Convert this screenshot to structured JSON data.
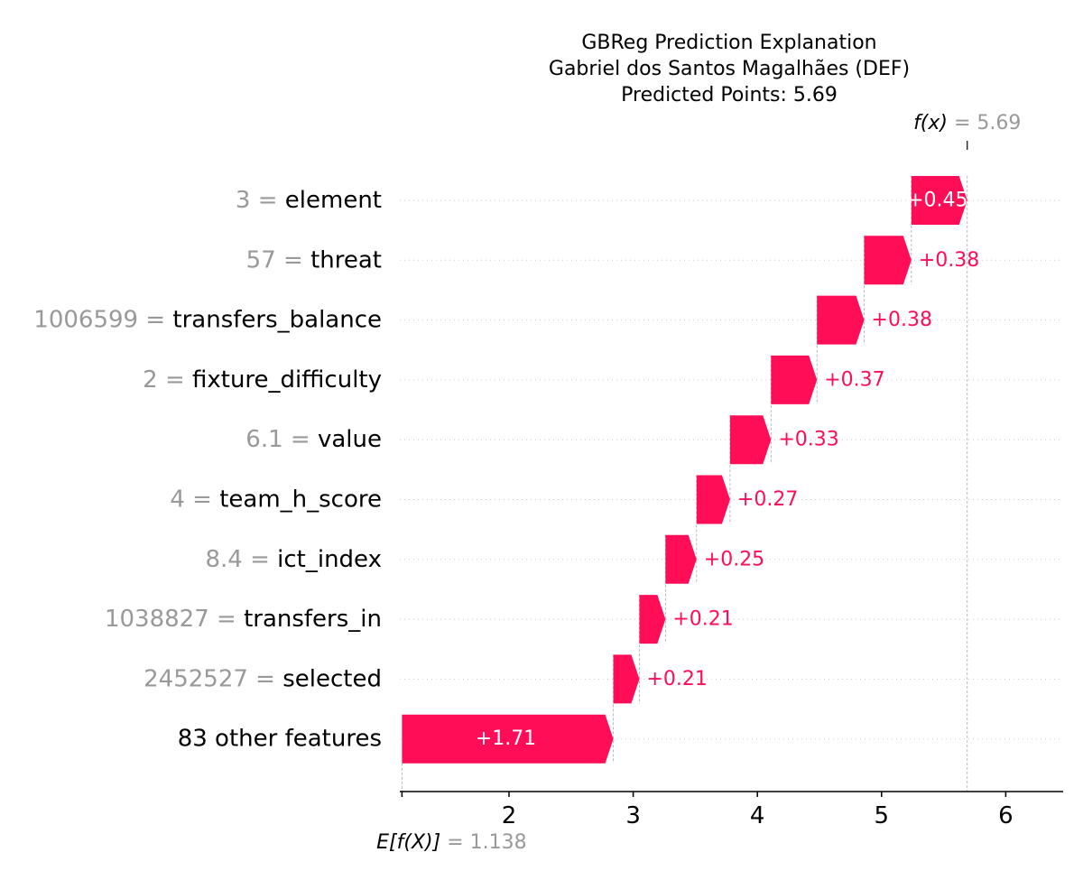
{
  "chart_data": {
    "type": "waterfall",
    "title_lines": [
      "GBReg Prediction Explanation",
      "Gabriel dos Santos Magalhães (DEF)",
      "Predicted Points: 5.69"
    ],
    "base_value": 1.138,
    "base_value_label": "1.138",
    "base_value_prefix": "E[f(X)]",
    "final_value": 5.69,
    "final_value_label": "5.69",
    "final_value_prefix": "f(x)",
    "xlim": [
      1.138,
      6.45
    ],
    "xticks": [
      {
        "value": 2,
        "label": "2"
      },
      {
        "value": 3,
        "label": "3"
      },
      {
        "value": 4,
        "label": "4"
      },
      {
        "value": 5,
        "label": "5"
      },
      {
        "value": 6,
        "label": "6"
      }
    ],
    "features": [
      {
        "value_text": "3",
        "name": "element",
        "contribution": 0.45,
        "label": "+0.45",
        "start": 5.24,
        "end": 5.69
      },
      {
        "value_text": "57",
        "name": "threat",
        "contribution": 0.38,
        "label": "+0.38",
        "start": 4.86,
        "end": 5.24
      },
      {
        "value_text": "1006599",
        "name": "transfers_balance",
        "contribution": 0.38,
        "label": "+0.38",
        "start": 4.48,
        "end": 4.86
      },
      {
        "value_text": "2",
        "name": "fixture_difficulty",
        "contribution": 0.37,
        "label": "+0.37",
        "start": 4.11,
        "end": 4.48
      },
      {
        "value_text": "6.1",
        "name": "value",
        "contribution": 0.33,
        "label": "+0.33",
        "start": 3.78,
        "end": 4.11
      },
      {
        "value_text": "4",
        "name": "team_h_score",
        "contribution": 0.27,
        "label": "+0.27",
        "start": 3.51,
        "end": 3.78
      },
      {
        "value_text": "8.4",
        "name": "ict_index",
        "contribution": 0.25,
        "label": "+0.25",
        "start": 3.26,
        "end": 3.51
      },
      {
        "value_text": "1038827",
        "name": "transfers_in",
        "contribution": 0.21,
        "label": "+0.21",
        "start": 3.05,
        "end": 3.26
      },
      {
        "value_text": "2452527",
        "name": "selected",
        "contribution": 0.21,
        "label": "+0.21",
        "start": 2.84,
        "end": 3.05
      },
      {
        "value_text": "",
        "name": "83 other features",
        "contribution": 1.71,
        "label": "+1.71",
        "start": 1.138,
        "end": 2.84
      }
    ],
    "colors": {
      "positive": "#ff0d57",
      "positive_text": "#ff0d57",
      "inside_text": "#ffffff",
      "muted_text": "#999999",
      "axis": "#000000",
      "grid": "#cccccc"
    },
    "grid": true
  }
}
